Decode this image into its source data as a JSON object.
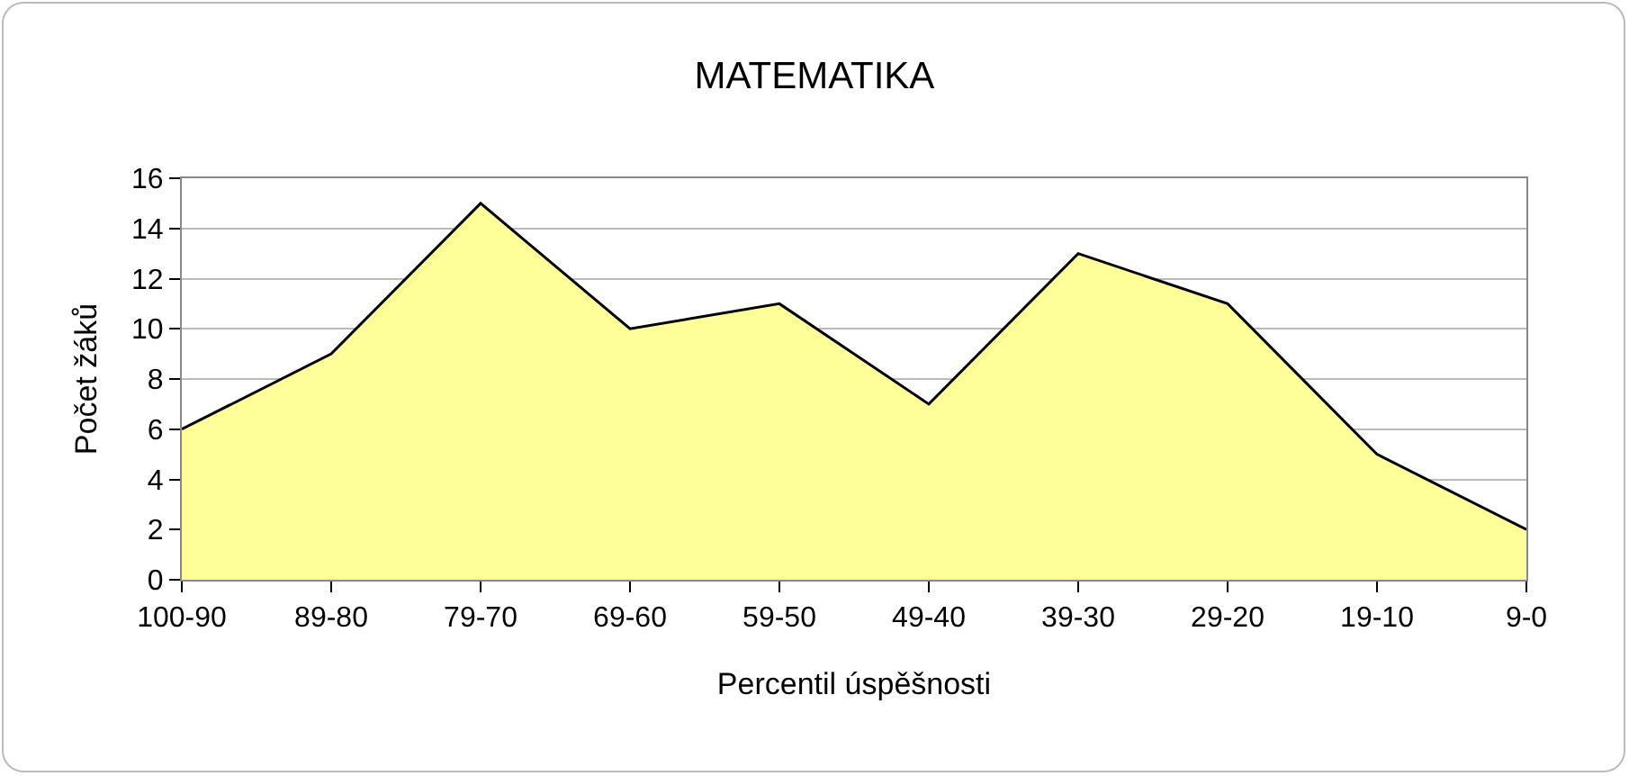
{
  "chart_data": {
    "type": "area",
    "title": "MATEMATIKA",
    "xlabel": "Percentil úspěšnosti",
    "ylabel": "Počet žáků",
    "categories": [
      "100-90",
      "89-80",
      "79-70",
      "69-60",
      "59-50",
      "49-40",
      "39-30",
      "29-20",
      "19-10",
      "9-0"
    ],
    "series": [
      {
        "color": "#ffff99",
        "values": [
          6,
          9,
          15,
          10,
          11,
          7,
          13,
          11,
          5,
          2
        ]
      }
    ],
    "ylim": [
      0,
      16
    ],
    "yticks": [
      0,
      2,
      4,
      6,
      8,
      10,
      12,
      14,
      16
    ],
    "grid": "y"
  }
}
